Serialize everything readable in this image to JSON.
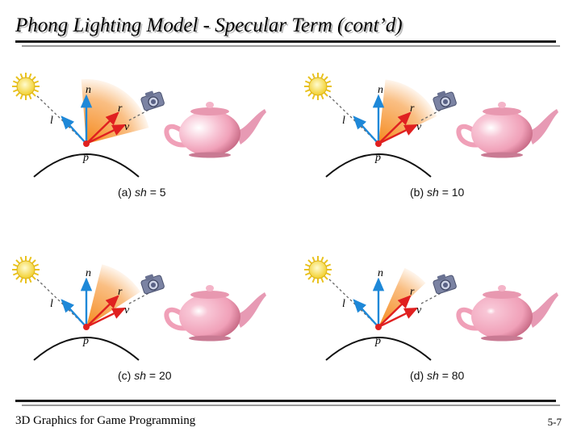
{
  "slide": {
    "title": "Phong Lighting Model - Specular Term (cont’d)",
    "footer_left": "3D Graphics for Game Programming",
    "page_number": "5-7"
  },
  "labels": {
    "n": "n",
    "l": "l",
    "r": "r",
    "v": "v",
    "p": "p"
  },
  "panels": [
    {
      "tag": "(a)",
      "var": "sh",
      "eq": "= 5",
      "shininess": 5
    },
    {
      "tag": "(b)",
      "var": "sh",
      "eq": "= 10",
      "shininess": 10
    },
    {
      "tag": "(c)",
      "var": "sh",
      "eq": "= 20",
      "shininess": 20
    },
    {
      "tag": "(d)",
      "var": "sh",
      "eq": "= 80",
      "shininess": 80
    }
  ],
  "colors": {
    "light_vector": "#1e88d8",
    "view_vector": "#e02020",
    "highlight_lobe": "#f58a1e",
    "surface_point": "#e02020",
    "teapot": "#f0a0b8"
  }
}
